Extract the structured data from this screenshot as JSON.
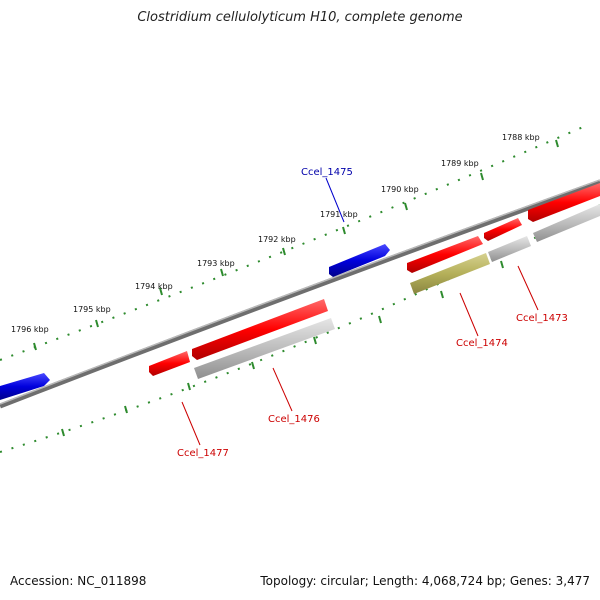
{
  "title": "Clostridium cellulolyticum H10, complete genome",
  "footer": {
    "accession": "Accession: NC_011898",
    "summary": "Topology: circular; Length: 4,068,724 bp; Genes: 3,477"
  },
  "colors": {
    "forward_cds": "#ff0000",
    "reverse_cds": "#0000cc",
    "rna_feature": "#bdbdbd",
    "olive_feature": "#b5b05a",
    "tick": "#2e8b2e",
    "backbone": "#888888",
    "forward_label": "#cc0000",
    "reverse_label": "#0000aa"
  },
  "ticks": [
    "1788 kbp",
    "1789 kbp",
    "1790 kbp",
    "1791 kbp",
    "1792 kbp",
    "1793 kbp",
    "1794 kbp",
    "1795 kbp",
    "1796 kbp"
  ],
  "genes": {
    "ccel_1473": "Ccel_1473",
    "ccel_1474": "Ccel_1474",
    "ccel_1475": "Ccel_1475",
    "ccel_1476": "Ccel_1476",
    "ccel_1477": "Ccel_1477"
  }
}
